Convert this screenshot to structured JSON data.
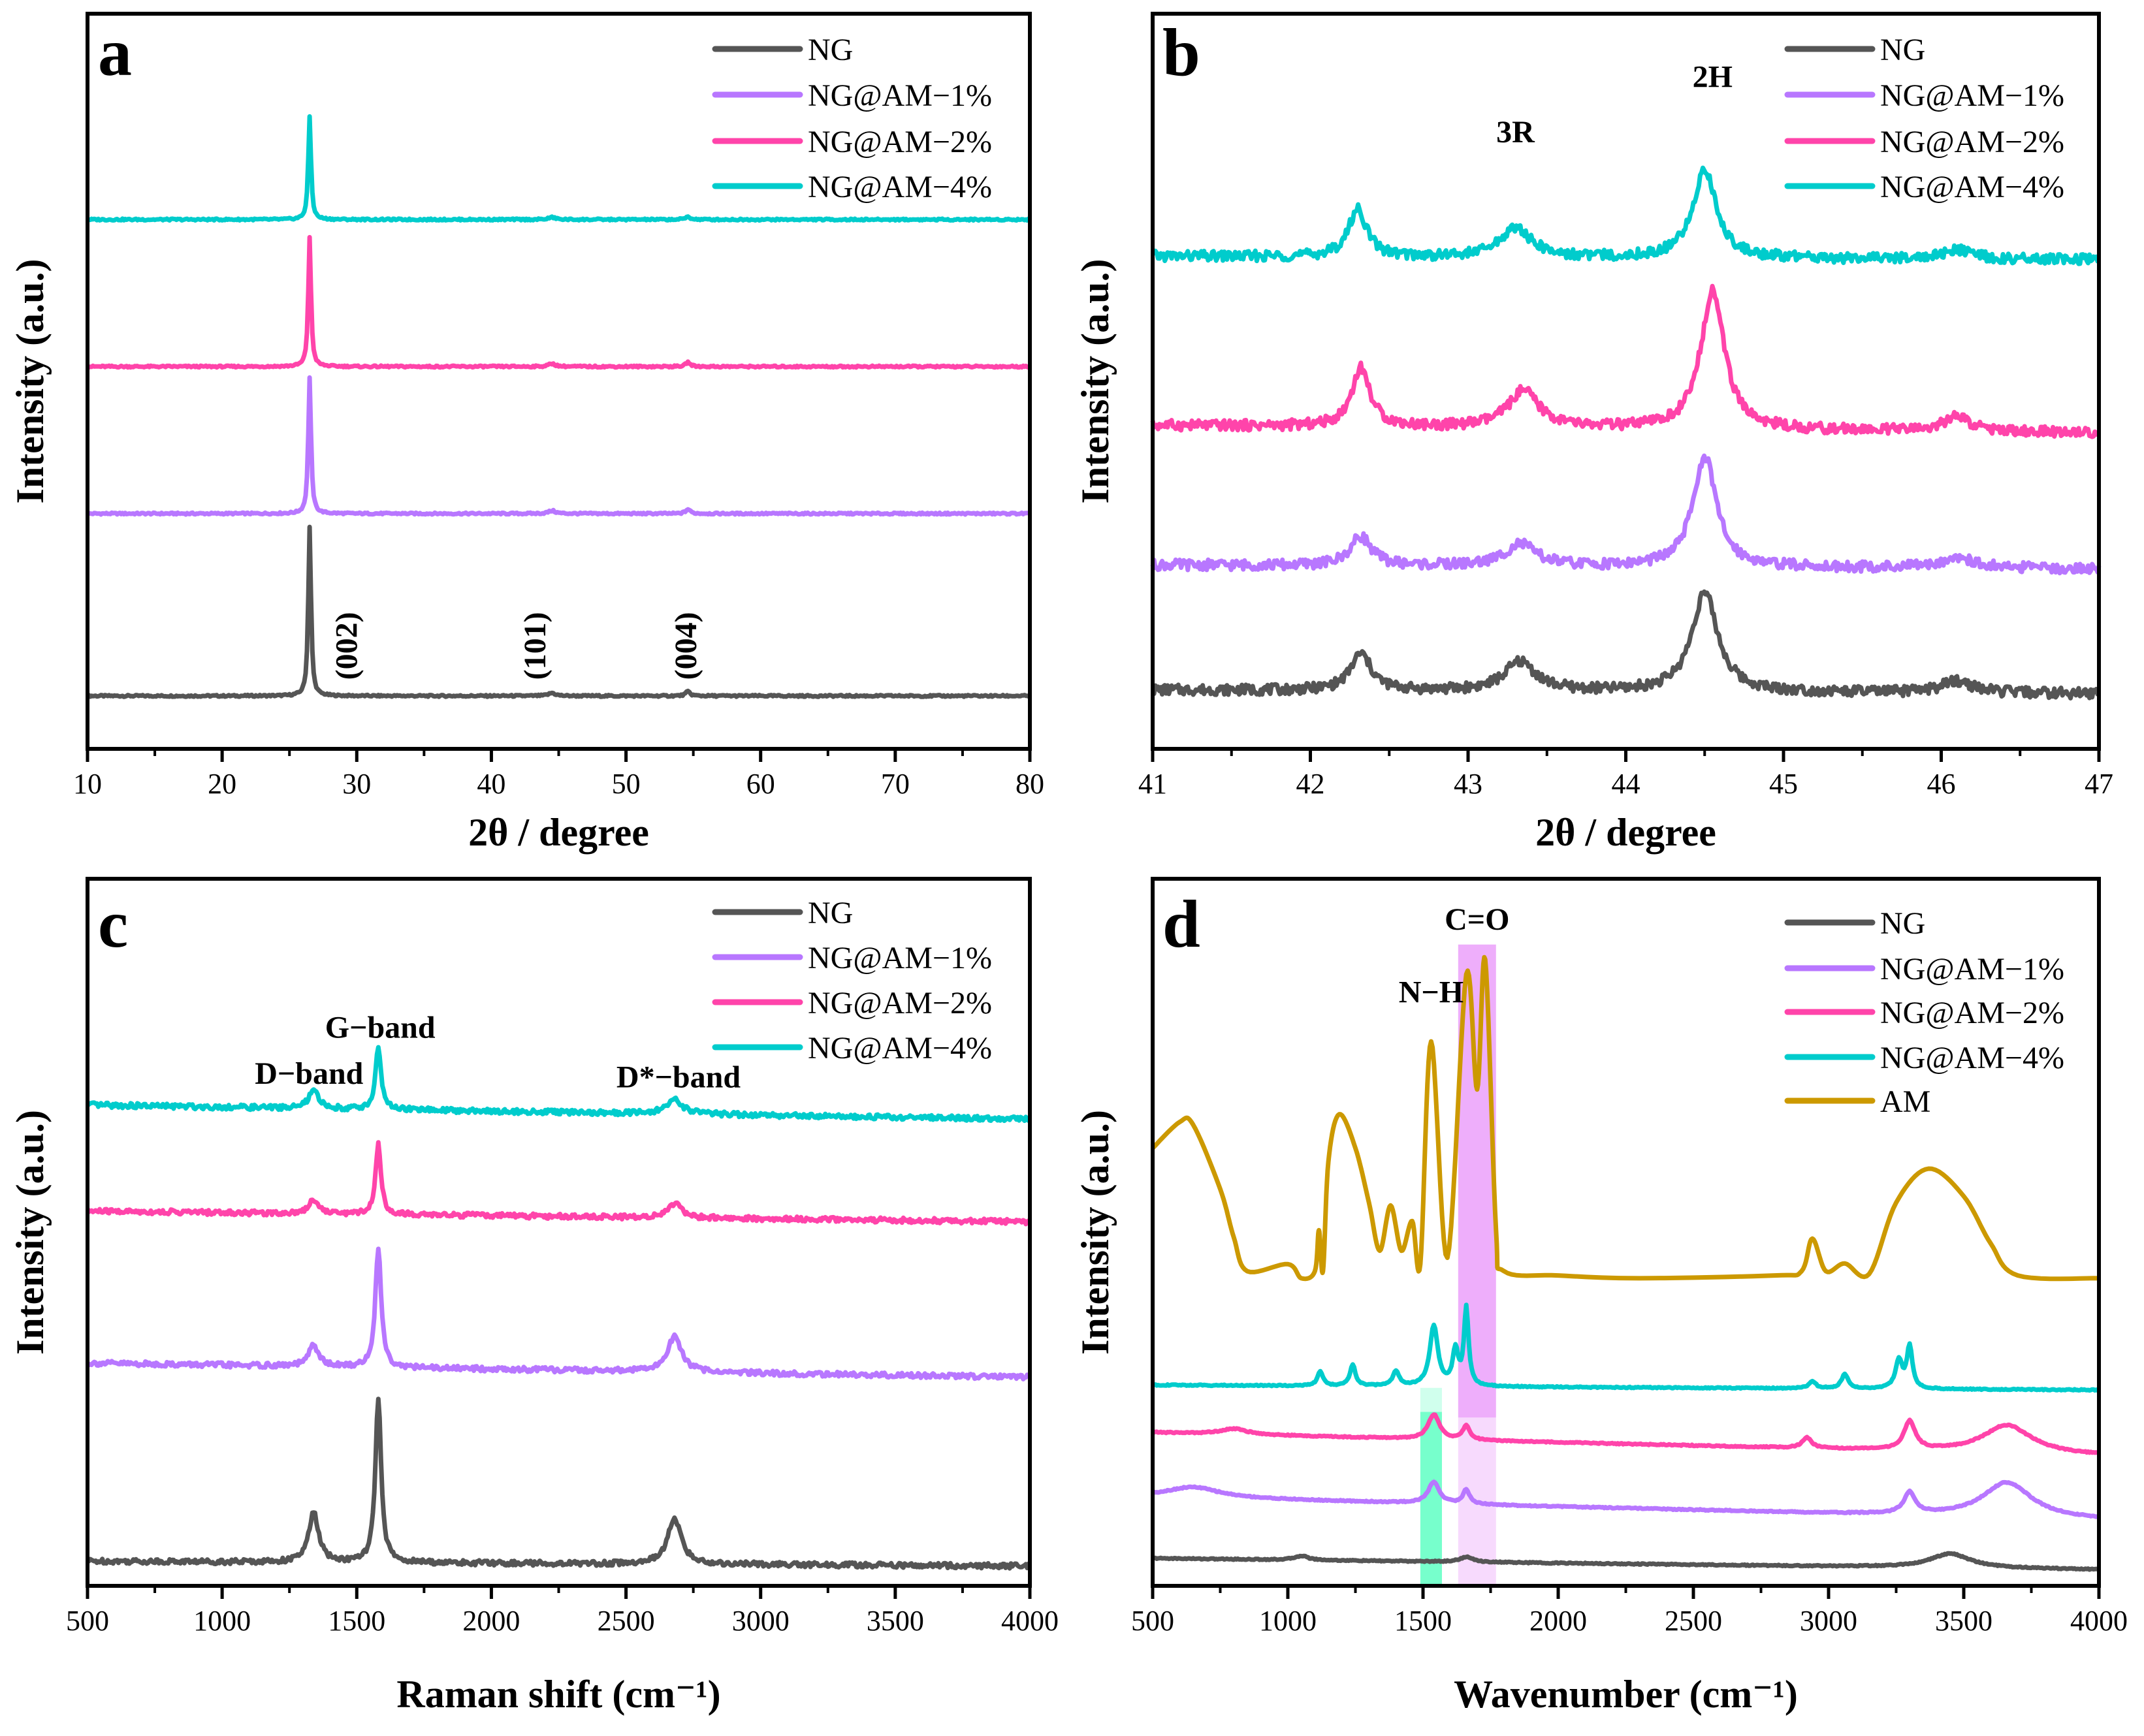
{
  "colors": {
    "NG": "#555555",
    "NG@AM-1%": "#B877FF",
    "NG@AM-2%": "#FF44AA",
    "NG@AM-4%": "#00CCCC",
    "AM": "#CC9900",
    "band_green": "#77FFCC",
    "band_purple": "#EEAEFB"
  },
  "chart_data": [
    {
      "panel": "a",
      "type": "line",
      "xlabel": "2θ / degree",
      "ylabel": "Intensity (a.u.)",
      "xlim": [
        10,
        80
      ],
      "ylim": [
        0,
        100
      ],
      "xticks": [
        10,
        20,
        30,
        40,
        50,
        60,
        70,
        80
      ],
      "xminor": 5,
      "noise": 0.12,
      "legend": [
        "NG",
        "NG@AM−1%",
        "NG@AM−2%",
        "NG@AM−4%"
      ],
      "legend_position": "top-right",
      "series": [
        {
          "name": "NG",
          "key": "NG",
          "baseline": [
            7.2,
            7.2
          ],
          "peaks": [
            [
              26.5,
              23,
              0.12
            ],
            [
              44.5,
              0.4,
              0.3
            ],
            [
              54.6,
              0.6,
              0.2
            ]
          ]
        },
        {
          "name": "NG@AM-1%",
          "key": "NG@AM-1%",
          "baseline": [
            32,
            32
          ],
          "peaks": [
            [
              26.5,
              18.5,
              0.12
            ],
            [
              44.5,
              0.4,
              0.3
            ],
            [
              54.6,
              0.6,
              0.2
            ]
          ]
        },
        {
          "name": "NG@AM-2%",
          "key": "NG@AM-2%",
          "baseline": [
            52,
            52
          ],
          "peaks": [
            [
              26.5,
              17.5,
              0.12
            ],
            [
              44.5,
              0.4,
              0.3
            ],
            [
              54.6,
              0.6,
              0.2
            ]
          ]
        },
        {
          "name": "NG@AM-4%",
          "key": "NG@AM-4%",
          "baseline": [
            72,
            72
          ],
          "peaks": [
            [
              26.5,
              14,
              0.12
            ],
            [
              44.5,
              0.3,
              0.3
            ],
            [
              54.6,
              0.4,
              0.2
            ]
          ]
        }
      ],
      "annotations": [
        {
          "text": "(002)",
          "x": 30,
          "y": 14,
          "rotate": true
        },
        {
          "text": "(101)",
          "x": 44,
          "y": 14,
          "rotate": true
        },
        {
          "text": "(004)",
          "x": 55.2,
          "y": 14,
          "rotate": true
        }
      ]
    },
    {
      "panel": "b",
      "type": "line",
      "xlabel": "2θ / degree",
      "ylabel": "Intensity (a.u.)",
      "xlim": [
        41,
        47
      ],
      "ylim": [
        0,
        100
      ],
      "xticks": [
        41,
        42,
        43,
        44,
        45,
        46,
        47
      ],
      "xminor": 0.5,
      "noise": 0.7,
      "legend": [
        "NG",
        "NG@AM−1%",
        "NG@AM−2%",
        "NG@AM−4%"
      ],
      "legend_position": "top-right",
      "series": [
        {
          "name": "NG",
          "key": "NG",
          "baseline": [
            8,
            7.5
          ],
          "peaks": [
            [
              42.32,
              5,
              0.08
            ],
            [
              43.33,
              4,
              0.12
            ],
            [
              44.5,
              13.5,
              0.1
            ],
            [
              46.1,
              1.6,
              0.12
            ]
          ]
        },
        {
          "name": "NG@AM-1%",
          "key": "NG@AM-1%",
          "baseline": [
            25,
            24.5
          ],
          "peaks": [
            [
              42.32,
              4,
              0.08
            ],
            [
              43.33,
              3,
              0.12
            ],
            [
              44.5,
              15,
              0.09
            ],
            [
              46.1,
              1.5,
              0.12
            ]
          ]
        },
        {
          "name": "NG@AM-2%",
          "key": "NG@AM-2%",
          "baseline": [
            44,
            43
          ],
          "peaks": [
            [
              42.32,
              8,
              0.07
            ],
            [
              43.35,
              5,
              0.12
            ],
            [
              44.55,
              19,
              0.09
            ],
            [
              46.1,
              2,
              0.1
            ]
          ]
        },
        {
          "name": "NG@AM-4%",
          "key": "NG@AM-4%",
          "baseline": [
            67,
            66.5
          ],
          "peaks": [
            [
              42.3,
              6.5,
              0.07
            ],
            [
              43.3,
              4,
              0.12
            ],
            [
              44.5,
              12,
              0.09
            ],
            [
              46.1,
              1.2,
              0.12
            ]
          ]
        }
      ],
      "annotations": [
        {
          "text": "3R",
          "x": 43.3,
          "y": 82.5,
          "rotate": false
        },
        {
          "text": "2H",
          "x": 44.55,
          "y": 90,
          "rotate": false
        }
      ]
    },
    {
      "panel": "c",
      "type": "line",
      "xlabel": "Raman shift (cm⁻¹)",
      "ylabel": "Intensity (a.u.)",
      "xlim": [
        500,
        4000
      ],
      "ylim": [
        0,
        100
      ],
      "xticks": [
        500,
        1000,
        1500,
        2000,
        2500,
        3000,
        3500,
        4000
      ],
      "xminor": 250,
      "noise": 0.35,
      "legend": [
        "NG",
        "NG@AM−1%",
        "NG@AM−2%",
        "NG@AM−4%"
      ],
      "legend_position": "top-right",
      "series": [
        {
          "name": "NG",
          "key": "NG",
          "baseline": [
            3.5,
            2.8
          ],
          "peaks": [
            [
              1340,
              7,
              22
            ],
            [
              1580,
              23,
              13
            ],
            [
              2680,
              6.5,
              30
            ]
          ]
        },
        {
          "name": "NG@AM-1%",
          "key": "NG@AM-1%",
          "baseline": [
            31.5,
            29.5
          ],
          "peaks": [
            [
              1340,
              3,
              22
            ],
            [
              1580,
              17,
              13
            ],
            [
              2680,
              5,
              32
            ]
          ]
        },
        {
          "name": "NG@AM-2%",
          "key": "NG@AM-2%",
          "baseline": [
            53,
            51.5
          ],
          "peaks": [
            [
              1340,
              2,
              22
            ],
            [
              1580,
              10,
              12
            ],
            [
              2680,
              2,
              30
            ]
          ]
        },
        {
          "name": "NG@AM-4%",
          "key": "NG@AM-4%",
          "baseline": [
            68,
            66
          ],
          "peaks": [
            [
              1340,
              2.5,
              22
            ],
            [
              1580,
              9,
              12
            ],
            [
              2680,
              2,
              35
            ]
          ]
        }
      ],
      "annotations": [
        {
          "text": "D−band",
          "x": 1323,
          "y": 71,
          "rotate": false
        },
        {
          "text": "G−band",
          "x": 1587,
          "y": 77.5,
          "rotate": false
        },
        {
          "text": "D*−band",
          "x": 2695,
          "y": 70.5,
          "rotate": false
        }
      ]
    },
    {
      "panel": "d",
      "type": "line",
      "xlabel": "Wavenumber (cm⁻¹)",
      "ylabel": "Intensity (a.u.)",
      "xlim": [
        500,
        4000
      ],
      "ylim": [
        0,
        100
      ],
      "xticks": [
        500,
        1000,
        1500,
        2000,
        2500,
        3000,
        3500,
        4000
      ],
      "xminor": 250,
      "noise": 0.08,
      "legend": [
        "NG",
        "NG@AM−1%",
        "NG@AM−2%",
        "NG@AM−4%",
        "AM"
      ],
      "legend_position": "top-right",
      "bands": [
        {
          "name": "N-H",
          "color_key": "band_green",
          "x": [
            1490,
            1570
          ],
          "y": [
            0,
            24.6
          ]
        },
        {
          "name": "C=O",
          "color_key": "band_purple",
          "x": [
            1630,
            1770
          ],
          "y": [
            0,
            90.7
          ]
        }
      ],
      "series": [
        {
          "name": "NG",
          "key": "NG",
          "baseline": [
            3.9,
            2.3
          ],
          "peaks": [
            [
              3450,
              2,
              90
            ],
            [
              1050,
              0.6,
              30
            ],
            [
              1660,
              0.7,
              30
            ]
          ]
        },
        {
          "name": "NG@AM-1%",
          "key": "NG@AM-1%",
          "baseline": [
            12.6,
            9.3
          ],
          "peaks": [
            [
              650,
              1.5,
              120
            ],
            [
              1540,
              3,
              25
            ],
            [
              1660,
              2,
              15
            ],
            [
              3300,
              3,
              25
            ],
            [
              3660,
              5,
              110
            ]
          ]
        },
        {
          "name": "NG@AM-2%",
          "key": "NG@AM-2%",
          "baseline": [
            21.7,
            18.4
          ],
          "peaks": [
            [
              800,
              0.8,
              60
            ],
            [
              1540,
              3.5,
              25
            ],
            [
              1660,
              2,
              15
            ],
            [
              2920,
              1.5,
              20
            ],
            [
              3300,
              4,
              25
            ],
            [
              3660,
              4,
              110
            ]
          ]
        },
        {
          "name": "NG@AM-4%",
          "key": "NG@AM-4%",
          "baseline": [
            28.4,
            27.7
          ],
          "peaks": [
            [
              1120,
              2,
              12
            ],
            [
              1240,
              3,
              12
            ],
            [
              1400,
              2,
              15
            ],
            [
              1540,
              8.5,
              18
            ],
            [
              1620,
              5,
              12
            ],
            [
              1660,
              11,
              10
            ],
            [
              2940,
              1,
              15
            ],
            [
              3060,
              2,
              15
            ],
            [
              3260,
              4,
              15
            ],
            [
              3300,
              6,
              12
            ]
          ]
        },
        {
          "name": "AM",
          "key": "AM",
          "points": [
            [
              500,
              61.9
            ],
            [
              600,
              65.6
            ],
            [
              650,
              65.2
            ],
            [
              750,
              56.1
            ],
            [
              800,
              49.3
            ],
            [
              850,
              44.5
            ],
            [
              1000,
              45.5
            ],
            [
              1050,
              43.5
            ],
            [
              1100,
              44.5
            ],
            [
              1115,
              50.3
            ],
            [
              1130,
              44.5
            ],
            [
              1150,
              60
            ],
            [
              1190,
              66.7
            ],
            [
              1250,
              61.9
            ],
            [
              1300,
              54.2
            ],
            [
              1340,
              47.4
            ],
            [
              1380,
              53.8
            ],
            [
              1420,
              47.4
            ],
            [
              1460,
              51.6
            ],
            [
              1490,
              45.5
            ],
            [
              1530,
              77
            ],
            [
              1590,
              46.4
            ],
            [
              1660,
              86.5
            ],
            [
              1700,
              70.2
            ],
            [
              1730,
              88.6
            ],
            [
              1770,
              50.3
            ],
            [
              1800,
              44.5
            ],
            [
              2000,
              43.9
            ],
            [
              2300,
              43.5
            ],
            [
              2800,
              43.9
            ],
            [
              2900,
              44.5
            ],
            [
              2940,
              49.1
            ],
            [
              2990,
              44.5
            ],
            [
              3060,
              45.6
            ],
            [
              3150,
              44.1
            ],
            [
              3250,
              54.2
            ],
            [
              3370,
              59
            ],
            [
              3500,
              55.1
            ],
            [
              3600,
              48.4
            ],
            [
              3700,
              43.9
            ],
            [
              4000,
              43.5
            ]
          ]
        }
      ],
      "annotations": [
        {
          "text": "C=O",
          "x": 1700,
          "y": 92.8,
          "rotate": false
        },
        {
          "text": "N−H",
          "x": 1530,
          "y": 82.5,
          "rotate": false
        }
      ]
    }
  ]
}
